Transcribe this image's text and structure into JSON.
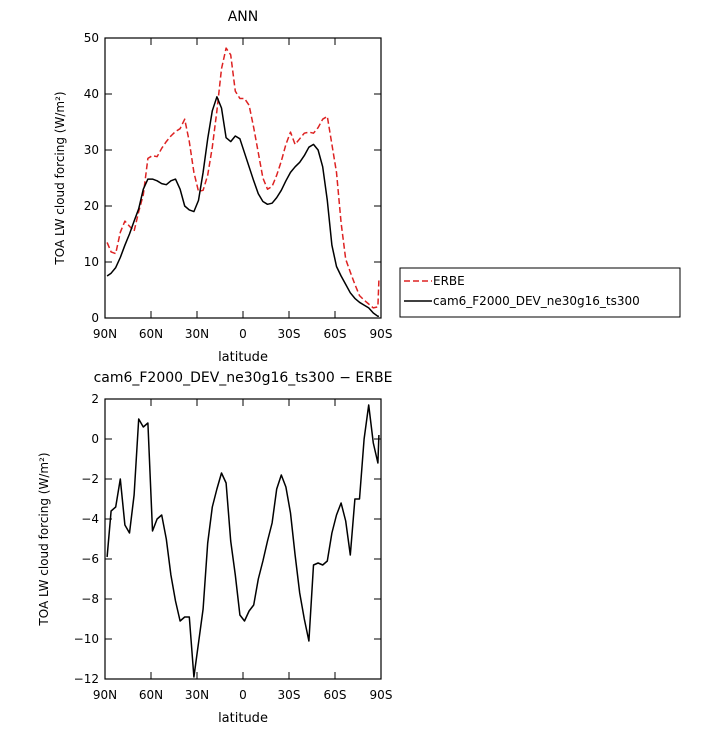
{
  "chart_data": [
    {
      "type": "line",
      "title": "ANN",
      "xlabel": "latitude",
      "ylabel": "TOA LW cloud forcing (W/m²)",
      "xticks": [
        "90N",
        "60N",
        "30N",
        "0",
        "30S",
        "60S",
        "90S"
      ],
      "xlim": [
        90,
        -90
      ],
      "ylim": [
        0,
        50
      ],
      "yticks": [
        0,
        10,
        20,
        30,
        40,
        50
      ],
      "legend": "right",
      "x": [
        88.6,
        86,
        83,
        80,
        77,
        74,
        71,
        68,
        65,
        62,
        59,
        56,
        53,
        50,
        47,
        44,
        41,
        38,
        35,
        32,
        29,
        26,
        23,
        20,
        17,
        14,
        11,
        8,
        5,
        2,
        -1,
        -4,
        -7,
        -10,
        -13,
        -16,
        -19,
        -22,
        -25,
        -28,
        -31,
        -34,
        -37,
        -40,
        -43,
        -46,
        -49,
        -52,
        -55,
        -58,
        -61,
        -64,
        -67,
        -70,
        -73,
        -76,
        -79,
        -82,
        -85,
        -88,
        -88.6
      ],
      "series": [
        {
          "name": "ERBE",
          "color": "#dd2222",
          "dash": "dashed",
          "values": [
            13.5,
            11.8,
            11.5,
            15.3,
            17.3,
            16.4,
            15.5,
            19,
            22,
            28.5,
            29,
            28.8,
            30.3,
            31.5,
            32.5,
            33.3,
            33.8,
            35.5,
            31.5,
            26,
            22.6,
            22.8,
            25.5,
            30.5,
            37,
            44.5,
            48.2,
            47,
            40.5,
            39.2,
            39.2,
            38,
            34,
            29.5,
            25,
            23,
            23.5,
            25.5,
            28,
            31,
            33.2,
            31,
            32,
            33,
            33.2,
            33,
            34,
            35.5,
            36,
            31,
            26,
            17,
            10.5,
            8.2,
            6,
            4,
            3.2,
            2.5,
            1.8,
            2,
            6.8
          ]
        },
        {
          "name": "cam6_F2000_DEV_ne30g16_ts300",
          "color": "#000000",
          "dash": "solid",
          "values": [
            7.5,
            8,
            9,
            10.8,
            13,
            15,
            17.3,
            19.5,
            23,
            24.8,
            24.8,
            24.5,
            24,
            23.8,
            24.5,
            24.8,
            23,
            20,
            19.3,
            19,
            21,
            26,
            32,
            37,
            39.5,
            37.5,
            32.2,
            31.5,
            32.5,
            32,
            29.5,
            27,
            24.5,
            22.2,
            20.8,
            20.3,
            20.5,
            21.5,
            22.8,
            24.5,
            26,
            27,
            27.8,
            29,
            30.5,
            31,
            30,
            27,
            21,
            13,
            9.2,
            7.5,
            6,
            4.5,
            3.5,
            2.8,
            2.3,
            1.8,
            0.9,
            0.3,
            0.3
          ]
        }
      ]
    },
    {
      "type": "line",
      "title": "cam6_F2000_DEV_ne30g16_ts300 − ERBE",
      "xlabel": "latitude",
      "ylabel": "TOA LW cloud forcing (W/m²)",
      "xticks": [
        "90N",
        "60N",
        "30N",
        "0",
        "30S",
        "60S",
        "90S"
      ],
      "xlim": [
        90,
        -90
      ],
      "ylim": [
        -12,
        2
      ],
      "yticks": [
        -12,
        -10,
        -8,
        -6,
        -4,
        -2,
        0,
        2
      ],
      "x": [
        88.6,
        86,
        83,
        80,
        77,
        74,
        71,
        68,
        65,
        62,
        59,
        56,
        53,
        50,
        47,
        44,
        41,
        38,
        35,
        32,
        29,
        26,
        23,
        20,
        17,
        14,
        11,
        8,
        5,
        2,
        -1,
        -4,
        -7,
        -10,
        -13,
        -16,
        -19,
        -22,
        -25,
        -28,
        -31,
        -34,
        -37,
        -40,
        -43,
        -46,
        -49,
        -52,
        -55,
        -58,
        -61,
        -64,
        -67,
        -70,
        -73,
        -76,
        -79,
        -82,
        -85,
        -88,
        -88.6
      ],
      "series": [
        {
          "name": "",
          "color": "#000000",
          "dash": "solid",
          "values": [
            -5.9,
            -3.6,
            -3.4,
            -2,
            -4.3,
            -4.7,
            -2.8,
            1,
            0.6,
            0.8,
            -4.6,
            -4,
            -3.8,
            -5,
            -6.8,
            -8.1,
            -9.1,
            -8.9,
            -8.9,
            -11.9,
            -10.2,
            -8.5,
            -5.2,
            -3.4,
            -2.5,
            -1.7,
            -2.2,
            -5.1,
            -6.8,
            -8.8,
            -9.1,
            -8.6,
            -8.3,
            -7,
            -6.1,
            -5.1,
            -4.2,
            -2.5,
            -1.8,
            -2.4,
            -3.7,
            -5.8,
            -7.7,
            -9,
            -10.1,
            -6.3,
            -6.2,
            -6.3,
            -6.1,
            -4.7,
            -3.8,
            -3.2,
            -4.1,
            -5.8,
            -3,
            -3,
            0,
            1.7,
            -0.2,
            -1.2,
            0.2
          ]
        }
      ]
    }
  ]
}
